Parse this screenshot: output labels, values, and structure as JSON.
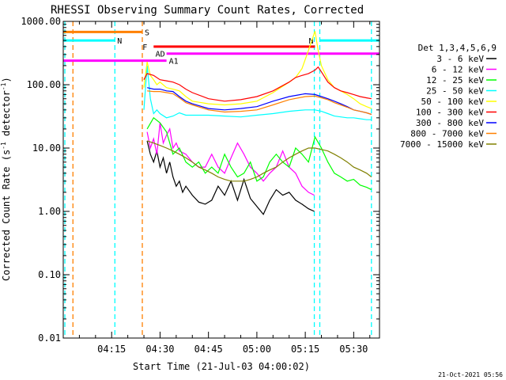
{
  "chart_data": {
    "type": "line",
    "title": "RHESSI Observing Summary Count Rates, Corrected",
    "xlabel": "Start Time (21-Jul-03 04:00:02)",
    "ylabel": "Corrected Count Rate (s",
    "ylabel_sup": "-1",
    "ylabel_tail": " detector",
    "ylabel_sup2": "-1",
    "ylabel_end": ")",
    "footer": "21-Oct-2021 05:56",
    "y_scale": "log",
    "ylim": [
      0.01,
      1000
    ],
    "xlim_minutes": [
      0,
      98
    ],
    "x_ticks": [
      {
        "t": 15,
        "label": "04:15"
      },
      {
        "t": 30,
        "label": "04:30"
      },
      {
        "t": 45,
        "label": "04:45"
      },
      {
        "t": 60,
        "label": "05:00"
      },
      {
        "t": 75,
        "label": "05:15"
      },
      {
        "t": 90,
        "label": "05:30"
      }
    ],
    "y_ticks": [
      {
        "v": 1000,
        "label": "1000.00"
      },
      {
        "v": 100,
        "label": "100.00"
      },
      {
        "v": 10,
        "label": "10.00"
      },
      {
        "v": 1,
        "label": "1.00"
      },
      {
        "v": 0.1,
        "label": "0.10"
      },
      {
        "v": 0.01,
        "label": "0.01"
      }
    ],
    "legend_title": "Det 1,3,4,5,6,9",
    "legend_placement": "right",
    "series": [
      {
        "name": "3 - 6 keV",
        "color": "#000000",
        "x": [
          26,
          27,
          28,
          29,
          30,
          31,
          32,
          33,
          34,
          35,
          36,
          37,
          38,
          40,
          42,
          44,
          46,
          48,
          50,
          52,
          54,
          56,
          58,
          60,
          62,
          64,
          66,
          68,
          70,
          72,
          74,
          76,
          77.8
        ],
        "y": [
          13,
          8,
          6,
          9,
          5,
          7,
          4,
          6,
          3.5,
          2.5,
          3,
          2,
          2.5,
          1.8,
          1.4,
          1.3,
          1.5,
          2.5,
          1.8,
          3,
          1.5,
          3.2,
          1.6,
          1.2,
          0.9,
          1.5,
          2.2,
          1.8,
          2,
          1.5,
          1.3,
          1.1,
          1
        ]
      },
      {
        "name": "6 - 12 keV",
        "color": "#ff00ff",
        "x": [
          26,
          27,
          28,
          29,
          30,
          31,
          32,
          33,
          34,
          35,
          36,
          38,
          40,
          42,
          44,
          46,
          48,
          50,
          52,
          54,
          56,
          58,
          60,
          62,
          64,
          66,
          68,
          70,
          72,
          74,
          76,
          77.8
        ],
        "y": [
          18,
          10,
          14,
          8,
          25,
          12,
          16,
          20,
          10,
          12,
          9,
          8,
          6,
          5,
          5,
          8,
          5,
          4,
          7,
          12,
          8,
          5,
          4,
          3,
          4,
          5,
          9,
          5,
          4,
          2.5,
          2,
          1.8
        ]
      },
      {
        "name": "12 - 25 keV",
        "color": "#00ff00",
        "x": [
          26,
          28,
          30,
          32,
          34,
          36,
          38,
          40,
          42,
          44,
          46,
          48,
          50,
          52,
          54,
          56,
          58,
          60,
          62,
          64,
          66,
          68,
          70,
          72,
          74,
          76,
          78,
          80,
          82,
          84,
          86,
          88,
          90,
          92,
          94,
          95.5
        ],
        "y": [
          20,
          30,
          25,
          18,
          8,
          10,
          6,
          5,
          6,
          4,
          5,
          4,
          8,
          5,
          3.5,
          4,
          6,
          3,
          3.5,
          6,
          8,
          6,
          5,
          10,
          8,
          6,
          15,
          10,
          6,
          4,
          3.5,
          3,
          3.2,
          2.6,
          2.4,
          2.2
        ]
      },
      {
        "name": "25 - 50 keV",
        "color": "#00ffff",
        "x": [
          25,
          26,
          27,
          28,
          29,
          30,
          32,
          34,
          36,
          38,
          40,
          45,
          50,
          55,
          60,
          65,
          70,
          75,
          78,
          80,
          82,
          84,
          86,
          88,
          90,
          92,
          94,
          95.5
        ],
        "y": [
          40,
          200,
          60,
          35,
          40,
          35,
          30,
          32,
          36,
          33,
          33,
          33,
          32,
          31,
          33,
          35,
          38,
          40,
          40,
          38,
          35,
          32,
          31,
          30,
          30,
          29,
          28,
          28
        ]
      },
      {
        "name": "50 - 100 keV",
        "color": "#ffff00",
        "x": [
          25,
          26,
          27,
          28,
          29,
          30,
          32,
          34,
          36,
          38,
          40,
          45,
          50,
          55,
          60,
          65,
          70,
          72,
          74,
          76,
          78,
          79,
          80,
          82,
          84,
          86,
          88,
          90,
          92,
          94,
          95.5
        ],
        "y": [
          90,
          230,
          140,
          120,
          100,
          110,
          90,
          85,
          80,
          65,
          55,
          50,
          48,
          50,
          55,
          75,
          110,
          130,
          180,
          350,
          700,
          350,
          200,
          120,
          90,
          80,
          70,
          60,
          50,
          45,
          42
        ]
      },
      {
        "name": "100 - 300 keV",
        "color": "#ff0000",
        "x": [
          25,
          26,
          28,
          30,
          32,
          34,
          36,
          38,
          40,
          45,
          50,
          55,
          60,
          65,
          70,
          72,
          74,
          76,
          78,
          79,
          80,
          82,
          84,
          86,
          88,
          90,
          92,
          94,
          95.5
        ],
        "y": [
          120,
          150,
          140,
          120,
          115,
          110,
          100,
          85,
          75,
          60,
          55,
          58,
          65,
          80,
          110,
          130,
          140,
          150,
          170,
          190,
          160,
          110,
          90,
          80,
          75,
          70,
          65,
          62,
          60
        ]
      },
      {
        "name": "300 - 800 keV",
        "color": "#0000ff",
        "x": [
          26,
          28,
          30,
          32,
          34,
          36,
          38,
          40,
          45,
          50,
          55,
          60,
          65,
          70,
          75,
          78,
          80,
          82,
          84,
          86,
          88,
          90,
          92,
          94,
          95.5
        ],
        "y": [
          90,
          85,
          85,
          80,
          78,
          65,
          55,
          50,
          42,
          40,
          42,
          45,
          55,
          65,
          72,
          70,
          65,
          60,
          55,
          50,
          45,
          40,
          38,
          36,
          34
        ]
      },
      {
        "name": "800 - 7000 keV",
        "color": "#ff8000",
        "x": [
          26,
          28,
          30,
          32,
          34,
          36,
          38,
          40,
          45,
          50,
          55,
          60,
          65,
          70,
          75,
          78,
          80,
          82,
          84,
          86,
          88,
          90,
          92,
          94,
          95.5
        ],
        "y": [
          80,
          78,
          78,
          75,
          72,
          62,
          52,
          48,
          40,
          37,
          38,
          40,
          48,
          58,
          65,
          66,
          62,
          58,
          52,
          48,
          44,
          40,
          38,
          36,
          34
        ]
      },
      {
        "name": "7000 - 15000 keV",
        "color": "#808000",
        "x": [
          26,
          28,
          30,
          32,
          34,
          36,
          38,
          40,
          42,
          44,
          46,
          48,
          50,
          52,
          54,
          56,
          58,
          60,
          62,
          64,
          66,
          68,
          70,
          72,
          74,
          76,
          78,
          80,
          82,
          84,
          86,
          88,
          90,
          92,
          94,
          95.5
        ],
        "y": [
          13,
          12,
          11,
          10,
          9,
          8,
          7,
          6,
          5,
          4.5,
          4,
          3.5,
          3.2,
          3,
          3,
          3,
          3.2,
          3.5,
          4,
          4.5,
          5,
          6,
          7,
          8,
          9,
          10,
          10,
          9.5,
          9,
          8,
          7,
          6,
          5,
          4.5,
          4,
          3.5
        ]
      }
    ],
    "annotations": [
      {
        "label": "S",
        "color": "#ff8000",
        "t_start": 0,
        "t_end": 24.5,
        "y": 680
      },
      {
        "label": "N",
        "color": "#00ffff",
        "t_start": 0,
        "t_end": 16,
        "y": 500
      },
      {
        "label": "N",
        "color": "#00ffff",
        "t_start": 79.5,
        "t_end": 98,
        "y": 500
      },
      {
        "label": "F",
        "color": "#ff0000",
        "t_start": 28,
        "t_end": 78,
        "y": 400
      },
      {
        "label": "AD",
        "color": "#ff00ff",
        "t_start": 32,
        "t_end": 98,
        "y": 310
      },
      {
        "label": "A1",
        "color": "#ff00ff",
        "t_start": 0,
        "t_end": 32,
        "y": 240
      }
    ],
    "verticals": [
      {
        "t": 0.5,
        "color": "#00ffff"
      },
      {
        "t": 3,
        "color": "#ff8000"
      },
      {
        "t": 16,
        "color": "#00ffff"
      },
      {
        "t": 24.5,
        "color": "#ff8000"
      },
      {
        "t": 77.8,
        "color": "#00ffff"
      },
      {
        "t": 79.5,
        "color": "#00ffff"
      },
      {
        "t": 95.5,
        "color": "#00ffff"
      }
    ]
  }
}
